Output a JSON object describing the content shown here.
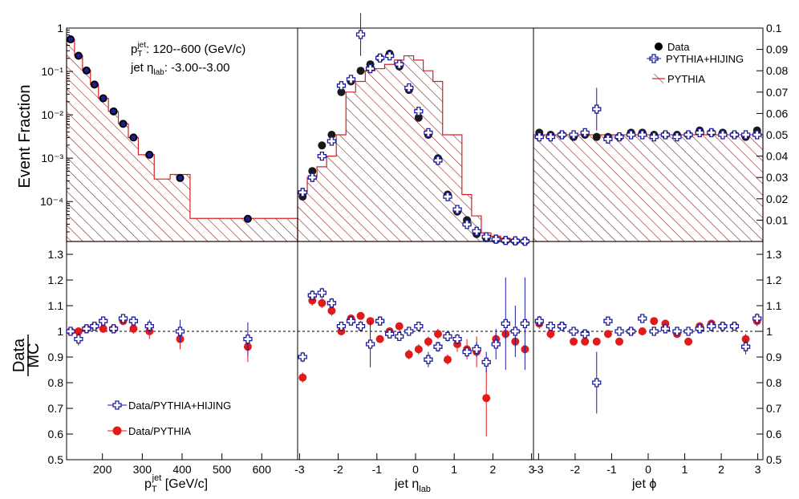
{
  "chart_data": [
    {
      "panel": "top-left",
      "type": "scatter",
      "yscale": "log",
      "ylim": [
        1.2e-05,
        1
      ],
      "xlim": [
        110,
        690
      ],
      "y_ticks": [
        "10⁻⁴",
        "10⁻³",
        "10⁻²",
        "10⁻¹",
        "1"
      ],
      "y_tick_values": [
        0.0001,
        0.001,
        0.01,
        0.1,
        1
      ],
      "ylabel": "Event Fraction",
      "annotation": {
        "pt_base": "p",
        "pt_sub": "T",
        "pt_sup": "jet",
        "pt_range": ": 120--600 (GeV/c)",
        "eta_prefix": "jet η",
        "eta_sub": "lab",
        "eta_range": ": -3.00--3.00"
      },
      "hist_edges": [
        110,
        130,
        150,
        170,
        190,
        215,
        240,
        265,
        290,
        330,
        370,
        420,
        690
      ],
      "hist_values": [
        0.55,
        0.23,
        0.105,
        0.05,
        0.024,
        0.012,
        0.0062,
        0.003,
        0.0012,
        0.00033,
        0.00042,
        4.09e-05
      ],
      "data_x": [
        120,
        140,
        160,
        180,
        202,
        228,
        252,
        278,
        318,
        395,
        565
      ],
      "data_y": [
        0.55,
        0.23,
        0.105,
        0.05,
        0.024,
        0.012,
        0.0062,
        0.003,
        0.0012,
        0.00035,
        4e-05
      ],
      "ph_x": [
        120,
        140,
        160,
        180,
        202,
        228,
        252,
        278,
        318,
        395,
        565
      ],
      "ph_y": [
        0.55,
        0.23,
        0.105,
        0.05,
        0.024,
        0.012,
        0.0062,
        0.003,
        0.0012,
        0.00035,
        4e-05
      ]
    },
    {
      "panel": "top-middle",
      "type": "scatter",
      "ylim": [
        0,
        0.1
      ],
      "xlim": [
        -3.05,
        3.05
      ],
      "hist_edges": [
        -3.05,
        -2.8,
        -2.55,
        -2.3,
        -2.05,
        -1.8,
        -1.55,
        -1.3,
        -1.05,
        -0.8,
        -0.55,
        -0.3,
        -0.05,
        0.2,
        0.45,
        0.7,
        0.95,
        1.2,
        1.45,
        1.7,
        1.95,
        2.2,
        2.45,
        2.7,
        2.95
      ],
      "hist_values": [
        0.023,
        0.03,
        0.035,
        0.04,
        0.05,
        0.07,
        0.075,
        0.08,
        0.081,
        0.083,
        0.085,
        0.087,
        0.085,
        0.08,
        0.075,
        0.05,
        0.05,
        0.022,
        0.012,
        0.004,
        0.0025,
        0.0015,
        0.0005,
        0
      ],
      "data_x": [
        -2.92,
        -2.67,
        -2.42,
        -2.17,
        -1.92,
        -1.67,
        -1.42,
        -1.17,
        -0.92,
        -0.67,
        -0.42,
        -0.17,
        0.08,
        0.33,
        0.58,
        0.83,
        1.08,
        1.33,
        1.58,
        1.83,
        2.08,
        2.33,
        2.58,
        2.83
      ],
      "data_y": [
        0.021,
        0.033,
        0.045,
        0.05,
        0.07,
        0.075,
        0.08,
        0.083,
        0.086,
        0.088,
        0.082,
        0.071,
        0.058,
        0.05,
        0.039,
        0.022,
        0.014,
        0.01,
        0.0035,
        0.0015,
        0.0008,
        0.0004,
        0.0001,
        5e-05
      ],
      "ph_x": [
        -2.92,
        -2.67,
        -2.42,
        -2.17,
        -1.92,
        -1.67,
        -1.42,
        -1.17,
        -0.92,
        -0.67,
        -0.42,
        -0.17,
        0.08,
        0.33,
        0.58,
        0.83,
        1.08,
        1.33,
        1.58,
        1.83,
        2.08,
        2.33,
        2.58,
        2.83
      ],
      "ph_y": [
        0.023,
        0.03,
        0.04,
        0.047,
        0.073,
        0.076,
        0.097,
        0.081,
        0.086,
        0.087,
        0.083,
        0.072,
        0.061,
        0.051,
        0.038,
        0.021,
        0.015,
        0.008,
        0.0048,
        0.0022,
        0.0011,
        0.0005,
        0.0003,
        0.0001
      ],
      "ph_yerr": [
        0,
        0,
        0,
        0,
        0,
        0,
        0.01,
        0,
        0,
        0,
        0,
        0,
        0,
        0,
        0,
        0,
        0,
        0,
        0,
        0,
        0,
        0,
        0,
        0
      ]
    },
    {
      "panel": "top-right",
      "type": "scatter",
      "ylim": [
        0,
        0.1
      ],
      "xlim": [
        -3.14,
        3.14
      ],
      "y_ticks": [
        "0.01",
        "0.02",
        "0.03",
        "0.04",
        "0.05",
        "0.06",
        "0.07",
        "0.08",
        "0.09",
        "0.1"
      ],
      "y_tick_values": [
        0.01,
        0.02,
        0.03,
        0.04,
        0.05,
        0.06,
        0.07,
        0.08,
        0.09,
        0.1
      ],
      "legend": {
        "data": "Data",
        "ph": "PYTHIA+HIJING",
        "p": "PYTHIA"
      },
      "hist_value": 0.05,
      "data_x": [
        -2.98,
        -2.67,
        -2.36,
        -2.04,
        -1.73,
        -1.41,
        -1.1,
        -0.79,
        -0.47,
        -0.16,
        0.16,
        0.47,
        0.79,
        1.1,
        1.41,
        1.73,
        2.04,
        2.36,
        2.67,
        2.98
      ],
      "data_y": [
        0.051,
        0.05,
        0.05,
        0.049,
        0.05,
        0.049,
        0.049,
        0.049,
        0.051,
        0.051,
        0.05,
        0.05,
        0.05,
        0.05,
        0.052,
        0.051,
        0.051,
        0.05,
        0.049,
        0.052
      ],
      "ph_x": [
        -2.98,
        -2.67,
        -2.36,
        -2.04,
        -1.73,
        -1.41,
        -1.1,
        -0.79,
        -0.47,
        -0.16,
        0.16,
        0.47,
        0.79,
        1.1,
        1.41,
        1.73,
        2.04,
        2.36,
        2.67,
        2.98
      ],
      "ph_y": [
        0.049,
        0.049,
        0.05,
        0.05,
        0.051,
        0.062,
        0.048,
        0.049,
        0.05,
        0.05,
        0.049,
        0.05,
        0.049,
        0.05,
        0.051,
        0.051,
        0.05,
        0.05,
        0.05,
        0.05
      ],
      "ph_yerr": [
        0,
        0,
        0,
        0,
        0,
        0.01,
        0,
        0,
        0,
        0,
        0,
        0,
        0,
        0,
        0,
        0,
        0,
        0,
        0,
        0
      ]
    },
    {
      "panel": "bottom-left",
      "type": "scatter",
      "ylim": [
        0.5,
        1.35
      ],
      "xlim": [
        110,
        690
      ],
      "x_ticks": [
        "200",
        "300",
        "400",
        "500",
        "600"
      ],
      "x_tick_values": [
        200,
        300,
        400,
        500,
        600
      ],
      "y_ticks": [
        "0.5",
        "0.6",
        "0.7",
        "0.8",
        "0.9",
        "1",
        "1.1",
        "1.2",
        "1.3"
      ],
      "y_tick_values": [
        0.5,
        0.6,
        0.7,
        0.8,
        0.9,
        1,
        1.1,
        1.2,
        1.3
      ],
      "ylabel_num": "Data",
      "ylabel_den": "MC",
      "xlabel": {
        "base": "p",
        "sub": "T",
        "sup": "jet",
        "rest": " [GeV/c]"
      },
      "legend": {
        "ph": "Data/PYTHIA+HIJING",
        "p": "Data/PYTHIA"
      },
      "ph_x": [
        120,
        140,
        160,
        180,
        202,
        228,
        252,
        278,
        318,
        395,
        565
      ],
      "ph_y": [
        1.0,
        0.97,
        1.01,
        1.02,
        1.04,
        1.01,
        1.05,
        1.04,
        1.02,
        1.0,
        0.97
      ],
      "ph_yerr": [
        0.01,
        0.025,
        0.01,
        0.01,
        0.01,
        0.01,
        0.015,
        0.015,
        0.025,
        0.045,
        0.065
      ],
      "p_x": [
        120,
        140,
        160,
        180,
        202,
        228,
        252,
        278,
        318,
        395,
        565
      ],
      "p_y": [
        1.0,
        1.0,
        1.01,
        1.02,
        1.01,
        1.01,
        1.04,
        1.01,
        1.0,
        0.97,
        0.94
      ],
      "p_yerr": [
        0.01,
        0.01,
        0.01,
        0.01,
        0.01,
        0.01,
        0.015,
        0.02,
        0.03,
        0.04,
        0.06
      ]
    },
    {
      "panel": "bottom-middle",
      "type": "scatter",
      "ylim": [
        0.5,
        1.35
      ],
      "xlim": [
        -3.05,
        3.05
      ],
      "x_ticks": [
        "-3",
        "-2",
        "-1",
        "0",
        "1",
        "2",
        "3"
      ],
      "x_tick_values": [
        -3,
        -2,
        -1,
        0,
        1,
        2,
        3
      ],
      "xlabel": {
        "base": "jet η",
        "sub": "lab"
      },
      "ph_x": [
        -2.92,
        -2.67,
        -2.42,
        -2.17,
        -1.92,
        -1.67,
        -1.42,
        -1.17,
        -0.92,
        -0.67,
        -0.42,
        -0.17,
        0.08,
        0.33,
        0.58,
        0.83,
        1.08,
        1.33,
        1.58,
        1.83,
        2.08,
        2.33,
        2.58,
        2.83
      ],
      "ph_y": [
        0.9,
        1.14,
        1.15,
        1.11,
        1.02,
        1.04,
        1.02,
        0.95,
        1.04,
        0.99,
        0.98,
        1.0,
        1.02,
        0.89,
        0.94,
        0.98,
        0.97,
        0.92,
        0.93,
        0.88,
        0.95,
        1.03,
        1.0,
        1.03
      ],
      "ph_yerr": [
        0.02,
        0.02,
        0.02,
        0.02,
        0.01,
        0.01,
        0.02,
        0.09,
        0.01,
        0.01,
        0.01,
        0.01,
        0.01,
        0.03,
        0.02,
        0.02,
        0.02,
        0.02,
        0.03,
        0.04,
        0.06,
        0.18,
        0.1,
        0.18
      ],
      "p_x": [
        -2.92,
        -2.67,
        -2.42,
        -2.17,
        -1.92,
        -1.67,
        -1.42,
        -1.17,
        -0.92,
        -0.67,
        -0.42,
        -0.17,
        0.08,
        0.33,
        0.58,
        0.83,
        1.08,
        1.33,
        1.58,
        1.83,
        2.08,
        2.33,
        2.58,
        2.83
      ],
      "p_y": [
        0.82,
        1.12,
        1.11,
        1.08,
        1.0,
        1.05,
        1.06,
        1.04,
        0.97,
        1.0,
        1.02,
        0.91,
        0.93,
        0.96,
        0.99,
        0.89,
        0.95,
        0.93,
        0.92,
        0.74,
        0.97,
        0.99,
        0.96,
        0.93
      ],
      "p_yerr": [
        0.02,
        0.02,
        0.02,
        0.02,
        0.01,
        0.01,
        0.01,
        0.01,
        0.01,
        0.01,
        0.01,
        0.02,
        0.02,
        0.02,
        0.02,
        0.02,
        0.03,
        0.04,
        0.06,
        0.15,
        0.02,
        0.02,
        0.02,
        0.02
      ]
    },
    {
      "panel": "bottom-right",
      "type": "scatter",
      "ylim": [
        0.5,
        1.35
      ],
      "xlim": [
        -3.14,
        3.14
      ],
      "x_ticks": [
        "-3",
        "-2",
        "-1",
        "0",
        "1",
        "2",
        "3"
      ],
      "x_tick_values": [
        -3,
        -2,
        -1,
        0,
        1,
        2,
        3
      ],
      "y_ticks": [
        "0.5",
        "0.6",
        "0.7",
        "0.8",
        "0.9",
        "1",
        "1.1",
        "1.2",
        "1.3"
      ],
      "y_tick_values": [
        0.5,
        0.6,
        0.7,
        0.8,
        0.9,
        1,
        1.1,
        1.2,
        1.3
      ],
      "xlabel": {
        "base": "jet ϕ"
      },
      "ph_x": [
        -2.98,
        -2.67,
        -2.36,
        -2.04,
        -1.73,
        -1.41,
        -1.1,
        -0.79,
        -0.47,
        -0.16,
        0.16,
        0.47,
        0.79,
        1.1,
        1.41,
        1.73,
        2.04,
        2.36,
        2.67,
        2.98
      ],
      "ph_y": [
        1.04,
        1.02,
        1.02,
        1.0,
        0.99,
        0.8,
        1.04,
        1.0,
        1.0,
        1.05,
        1.0,
        1.01,
        1.0,
        1.0,
        1.01,
        1.02,
        1.02,
        1.02,
        0.94,
        1.05
      ],
      "ph_yerr": [
        0.02,
        0.01,
        0.01,
        0.01,
        0.01,
        0.12,
        0.01,
        0.01,
        0.01,
        0.01,
        0.01,
        0.01,
        0.01,
        0.01,
        0.01,
        0.02,
        0.01,
        0.01,
        0.03,
        0.02
      ],
      "p_x": [
        -2.98,
        -2.67,
        -2.36,
        -2.04,
        -1.73,
        -1.41,
        -1.1,
        -0.79,
        -0.47,
        -0.16,
        0.16,
        0.47,
        0.79,
        1.1,
        1.41,
        1.73,
        2.04,
        2.36,
        2.67,
        2.98
      ],
      "p_y": [
        1.03,
        0.99,
        1.02,
        0.96,
        0.96,
        0.96,
        0.99,
        0.96,
        1.0,
        1.0,
        1.04,
        1.03,
        0.99,
        0.96,
        1.02,
        1.03,
        1.02,
        1.02,
        0.97,
        1.04
      ],
      "p_yerr": [
        0.02,
        0.02,
        0.01,
        0.01,
        0.01,
        0.01,
        0.01,
        0.01,
        0.01,
        0.01,
        0.01,
        0.01,
        0.01,
        0.01,
        0.01,
        0.01,
        0.01,
        0.01,
        0.02,
        0.02
      ]
    }
  ]
}
